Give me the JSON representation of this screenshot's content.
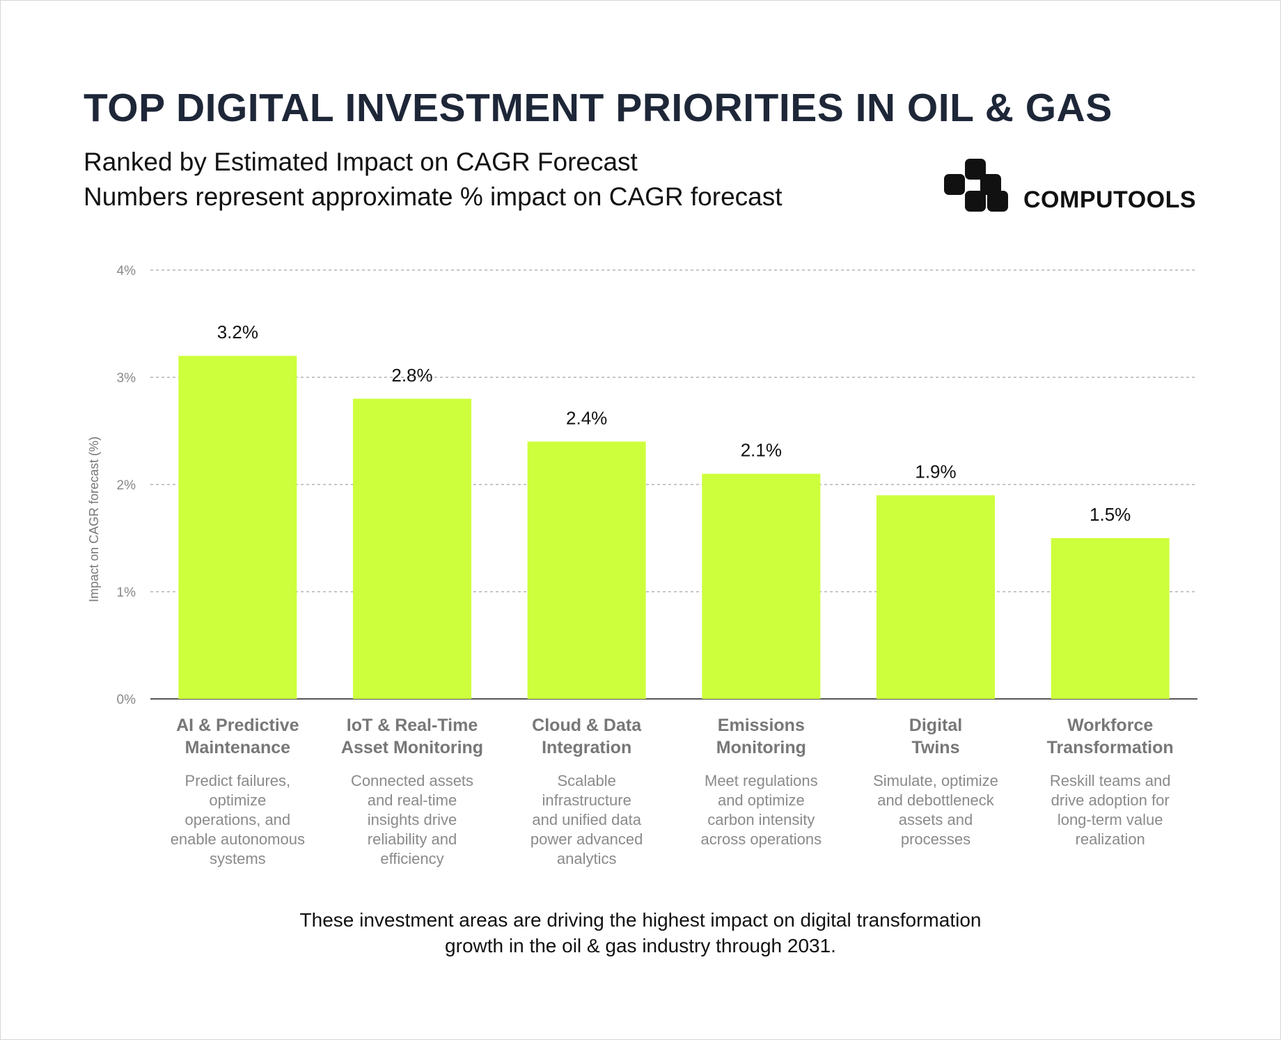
{
  "header": {
    "title": "TOP DIGITAL INVESTMENT PRIORITIES IN OIL & GAS",
    "subtitle_line1": "Ranked by Estimated Impact on CAGR Forecast",
    "subtitle_line2": "Numbers represent approximate % impact on CAGR forecast",
    "brand_name": "COMPUTOOLS",
    "logo_icon": "computools-logo-icon"
  },
  "chart_data": {
    "type": "bar",
    "ylabel": "Impact on CAGR forecast (%)",
    "ylim": [
      0,
      4
    ],
    "yticks": [
      "0%",
      "1%",
      "2%",
      "3%",
      "4%"
    ],
    "grid": true,
    "bar_color": "#cdff3c",
    "categories": [
      "AI & Predictive\nMaintenance",
      "IoT & Real-Time\nAsset Monitoring",
      "Cloud & Data\nIntegration",
      "Emissions\nMonitoring",
      "Digital\nTwins",
      "Workforce\nTransformation"
    ],
    "values": [
      3.2,
      2.8,
      2.4,
      2.1,
      1.9,
      1.5
    ],
    "value_labels": [
      "3.2%",
      "2.8%",
      "2.4%",
      "2.1%",
      "1.9%",
      "1.5%"
    ],
    "descriptions": [
      "Predict failures,\noptimize\noperations, and\nenable autonomous\nsystems",
      "Connected assets\nand real-time\ninsights drive\nreliability and\nefficiency",
      "Scalable\ninfrastructure\nand unified data\npower advanced\nanalytics",
      "Meet regulations\nand optimize\ncarbon intensity\nacross operations",
      "Simulate, optimize\nand debottleneck\nassets and\nprocesses",
      "Reskill teams and\ndrive adoption for\nlong-term value\nrealization"
    ]
  },
  "footnote": "These investment areas are driving the highest impact on digital transformation\ngrowth in the oil & gas industry through 2031."
}
